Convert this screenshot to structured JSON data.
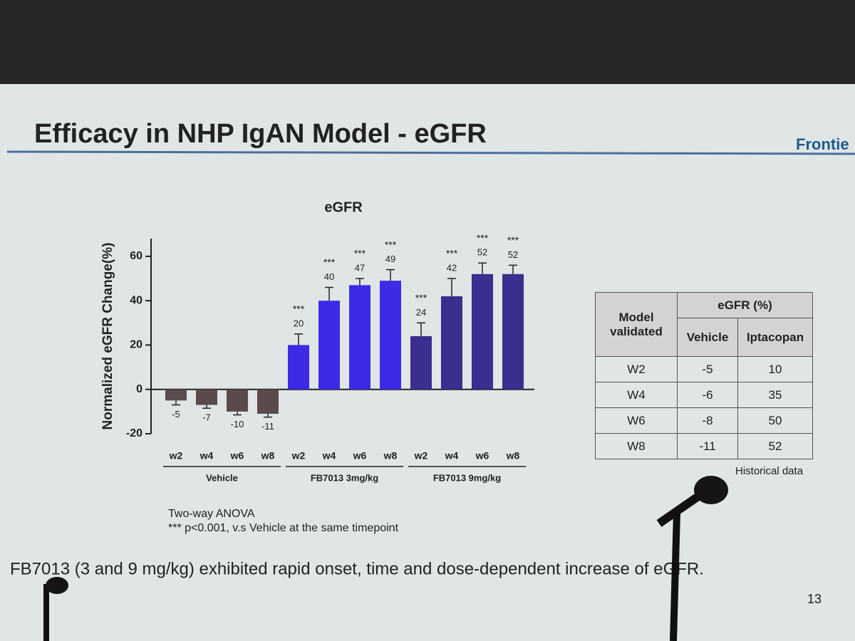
{
  "slide": {
    "title": "Efficacy in NHP IgAN Model - eGFR",
    "logo": "Frontie",
    "conclusion": "FB7013 (3 and 9 mg/kg) exhibited rapid onset, time and dose-dependent increase of eGFR.",
    "page_number": "13"
  },
  "chart_data": {
    "type": "bar",
    "title": "eGFR",
    "y_label": "Normalized eGFR Change(%)",
    "categories": [
      "w2",
      "w4",
      "w6",
      "w8"
    ],
    "series": [
      {
        "name": "Vehicle",
        "color": "#5b4a4c",
        "values": [
          -5,
          -7,
          -10,
          -11
        ],
        "errors": [
          2,
          1.5,
          1.5,
          1.5
        ]
      },
      {
        "name": "FB7013 3mg/kg",
        "color": "#3b2be6",
        "values": [
          20,
          40,
          47,
          49
        ],
        "errors": [
          5,
          6,
          3,
          5
        ],
        "significance": [
          "***",
          "***",
          "***",
          "***"
        ]
      },
      {
        "name": "FB7013 9mg/kg",
        "color": "#3a2e8e",
        "values": [
          24,
          42,
          52,
          52
        ],
        "errors": [
          6,
          8,
          5,
          4
        ],
        "significance": [
          "***",
          "***",
          "***",
          "***"
        ]
      }
    ],
    "ylim": [
      -20,
      68
    ],
    "yticks": [
      -20,
      0,
      20,
      40,
      60
    ],
    "footnotes": [
      "Two-way ANOVA",
      "*** p<0.001, v.s Vehicle at the same timepoint"
    ]
  },
  "table": {
    "header": {
      "model": "Model validated",
      "egfr": "eGFR (%)",
      "columns": [
        "Vehicle",
        "Iptacopan"
      ]
    },
    "rows": [
      [
        "W2",
        -5,
        10
      ],
      [
        "W4",
        -6,
        35
      ],
      [
        "W6",
        -8,
        50
      ],
      [
        "W8",
        -11,
        52
      ]
    ],
    "caption": "Historical data"
  }
}
